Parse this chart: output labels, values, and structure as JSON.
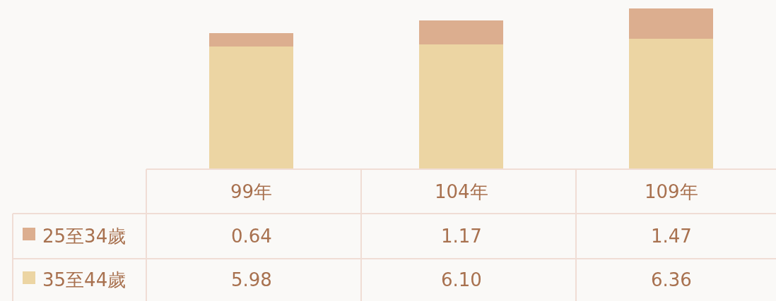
{
  "chart_data": {
    "type": "bar",
    "stacked": true,
    "categories": [
      "99年",
      "104年",
      "109年"
    ],
    "ylim": [
      0,
      8.25
    ],
    "legend": "bottom",
    "series": [
      {
        "name": "35至44歲",
        "color": "#ecd5a3",
        "values": [
          5.98,
          6.1,
          6.36
        ],
        "value_labels": [
          "5.98",
          "6.10",
          "6.36"
        ]
      },
      {
        "name": "25至34歲",
        "color": "#dcae8f",
        "values": [
          0.64,
          1.17,
          1.47
        ],
        "value_labels": [
          "0.64",
          "1.17",
          "1.47"
        ]
      }
    ]
  }
}
